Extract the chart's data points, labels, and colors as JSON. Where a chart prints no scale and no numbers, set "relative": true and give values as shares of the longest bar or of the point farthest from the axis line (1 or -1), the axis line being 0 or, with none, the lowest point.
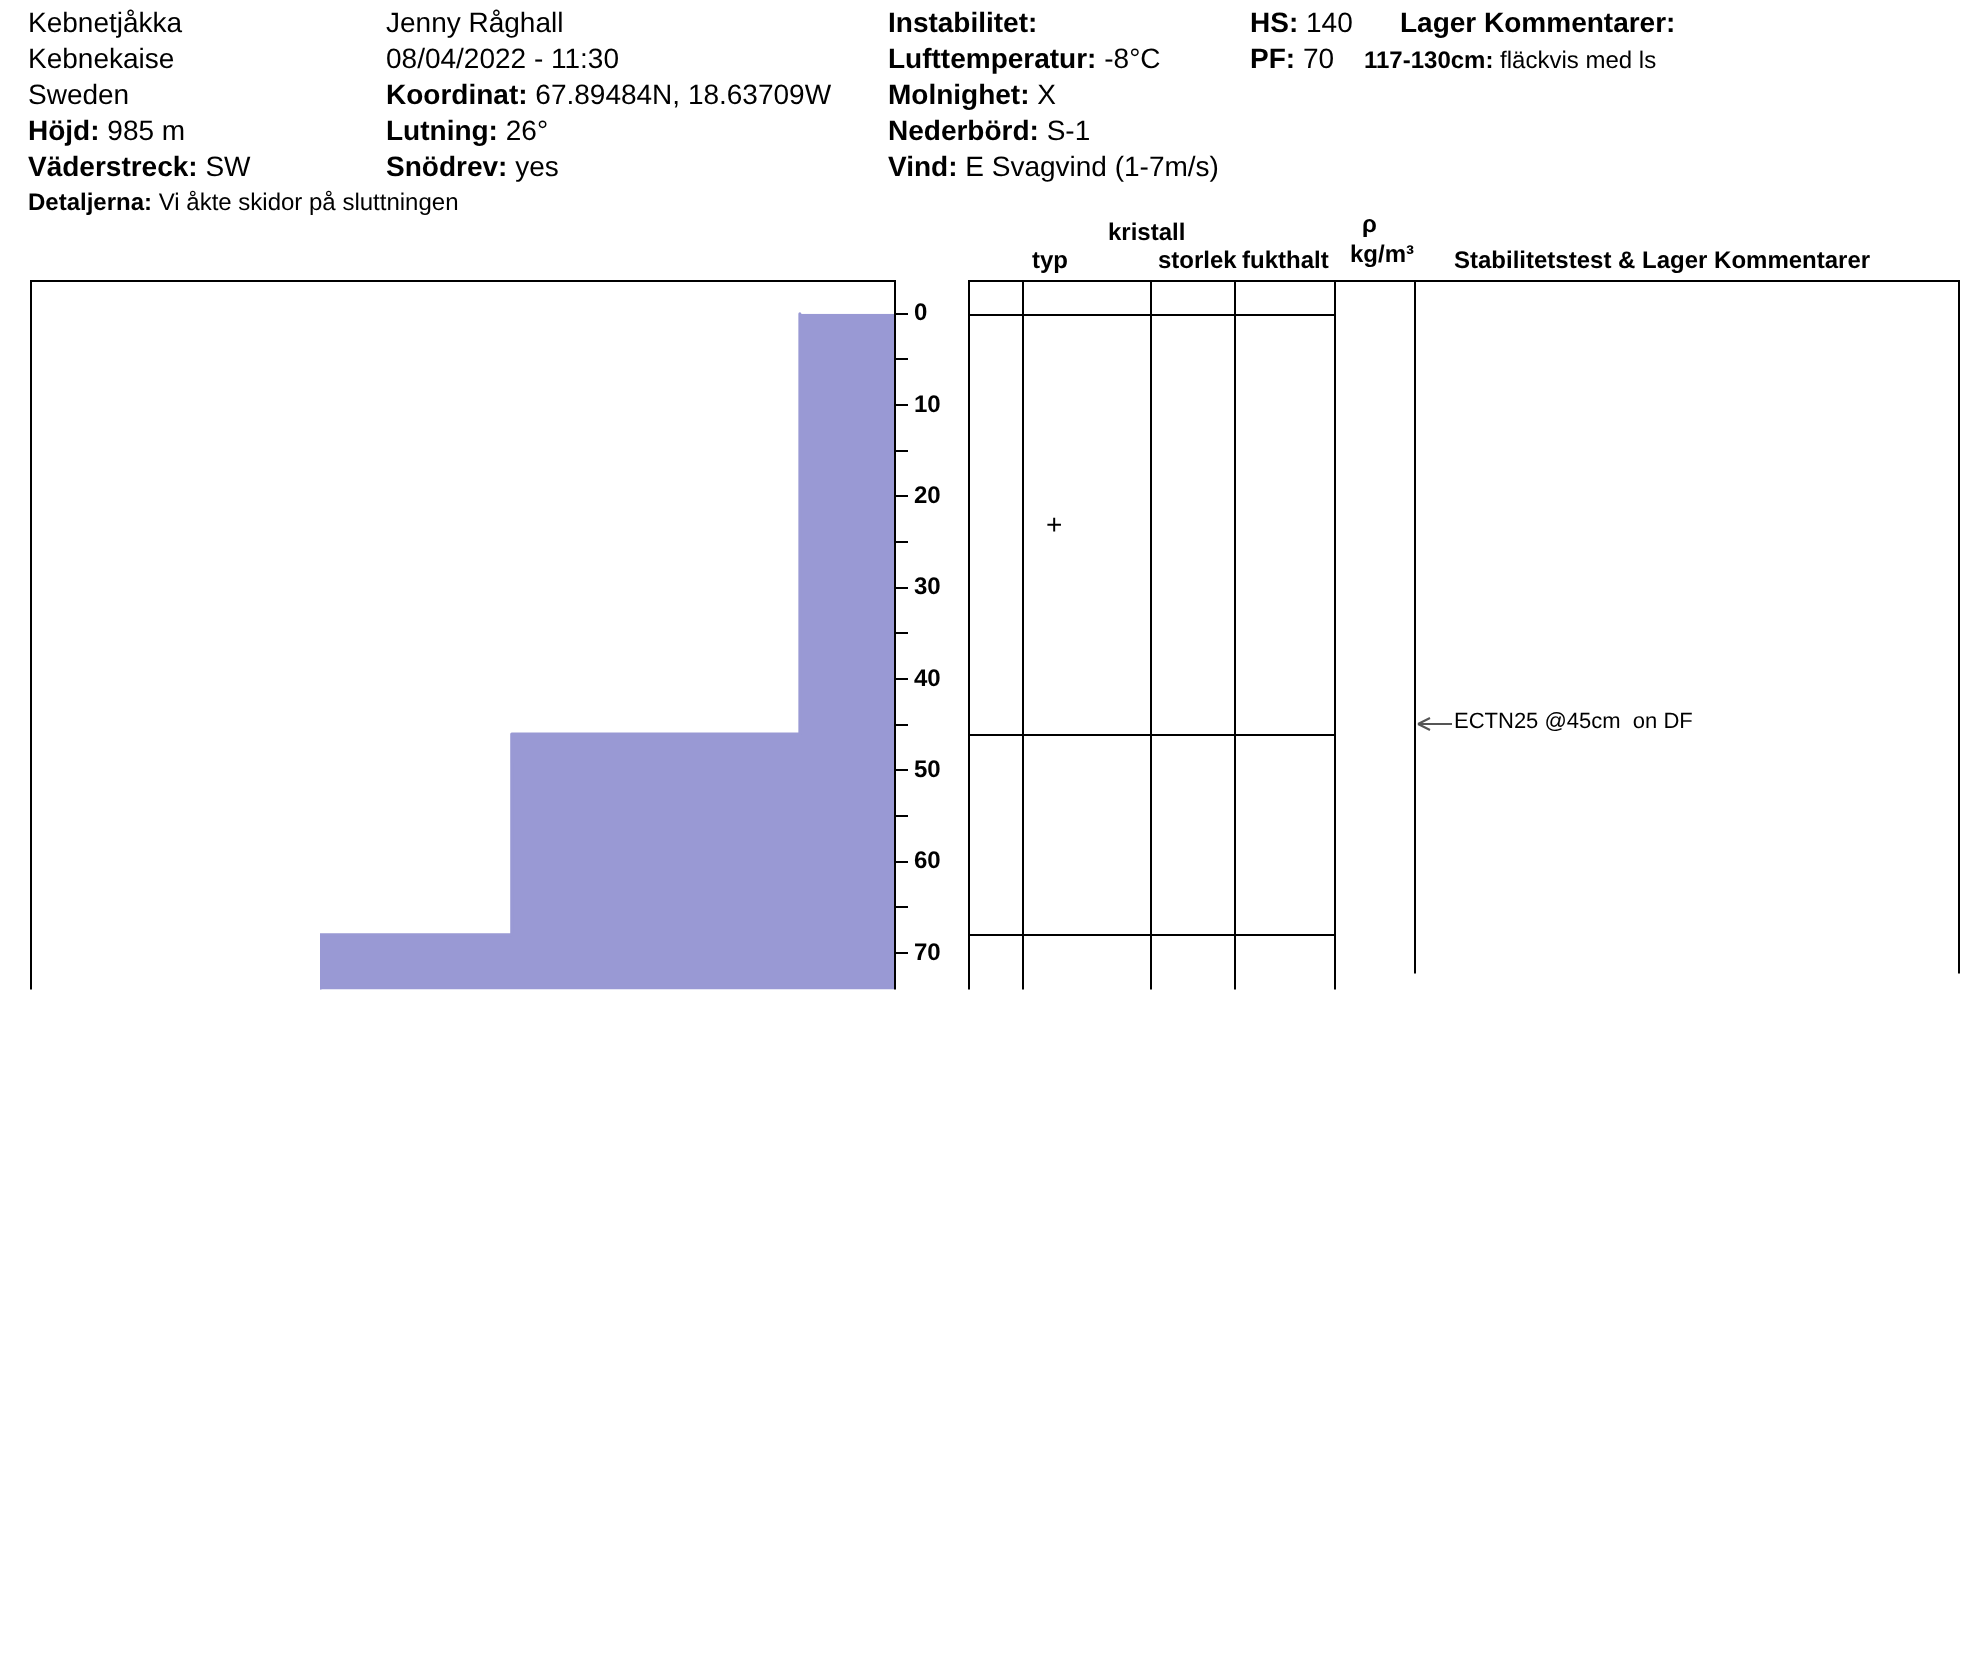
{
  "chart_data": {
    "type": "area",
    "orientation": "horizontal",
    "relative": true,
    "color": "#9999d4",
    "x": [
      0,
      46,
      46,
      68,
      68,
      74
    ],
    "values": [
      -0.164,
      -0.164,
      -0.666,
      -0.666,
      -1,
      -1
    ],
    "ylim": [
      74,
      -3.7
    ],
    "yticks": [
      0,
      {
        "value": 5,
        "label": null
      },
      10,
      {
        "value": 15,
        "label": null
      },
      20,
      {
        "value": 25,
        "label": null
      },
      30,
      {
        "value": 35,
        "label": null
      },
      40,
      {
        "value": 45,
        "label": null
      },
      50,
      {
        "value": 55,
        "label": null
      },
      60,
      {
        "value": 65,
        "label": null
      },
      70
    ],
    "tick_labels": "y",
    "grid": false,
    "legend": false,
    "annotations": [
      "Kebnetjåkka",
      "Kebnekaise",
      "Sweden",
      "Höjd: 985 m",
      "Väderstreck: SW",
      "Detaljerna: Vi åkte skidor på sluttningen",
      "Jenny Råghall",
      "08/04/2022 - 11:30",
      "Koordinat: 67.89484N, 18.63709W",
      "Lutning: 26°",
      "Snödrev: yes",
      "Instabilitet:",
      "Lufttemperatur: -8°C",
      "Molnighet: X",
      "Nederbörd: S-1",
      "Vind: E Svagvind (1-7m/s)",
      "HS: 140",
      "PF: 70",
      "Lager Kommentarer:",
      "117-130cm: fläckvis med ls",
      "kristall",
      "typ",
      "storlek",
      "fukthalt",
      "ρ",
      "kg/m³",
      "Stabilitetstest & Lager Kommentarer",
      "+",
      "ECTN25 @45cm  on DF"
    ]
  }
}
